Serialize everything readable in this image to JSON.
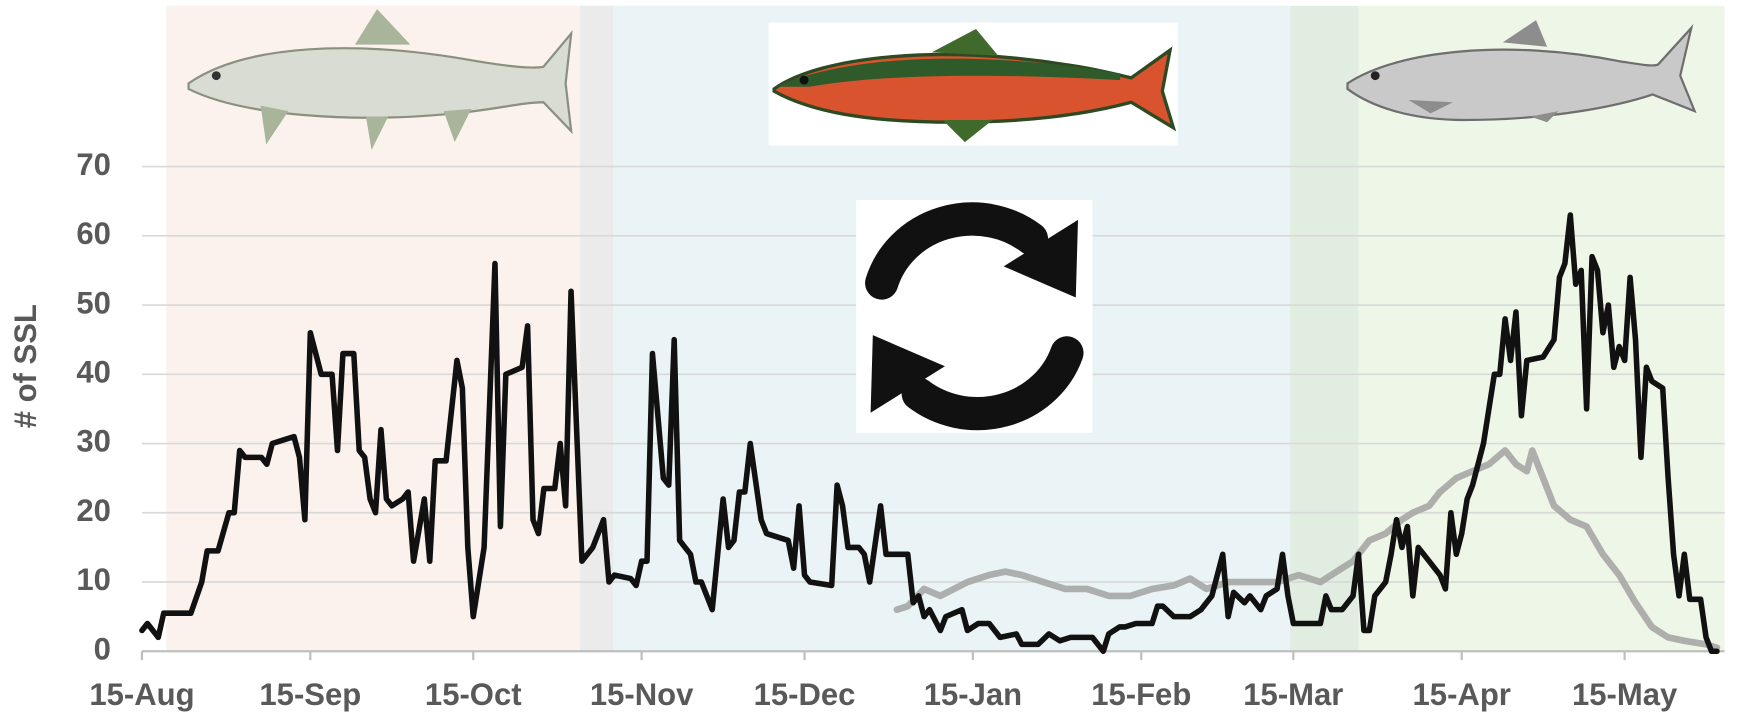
{
  "chart_data": {
    "type": "line",
    "y_label": "# of SSL",
    "grid": true,
    "xlim": [
      "15-Aug",
      "1-Jun"
    ],
    "xticks": [
      "15-Aug",
      "15-Sep",
      "15-Oct",
      "15-Nov",
      "15-Dec",
      "15-Jan",
      "15-Feb",
      "15-Mar",
      "15-Apr",
      "15-May"
    ],
    "ylim": [
      0,
      70
    ],
    "yticks": [
      0,
      10,
      20,
      30,
      40,
      50,
      60,
      70
    ],
    "series": [
      {
        "color": "#111111",
        "x": [
          "15-Aug",
          "16-Aug",
          "18-Aug",
          "19-Aug",
          "24-Aug",
          "26-Aug",
          "27-Aug",
          "29-Aug",
          "31-Aug",
          "1-Sep",
          "2-Sep",
          "3-Sep",
          "6-Sep",
          "7-Sep",
          "8-Sep",
          "10-Sep",
          "12-Sep",
          "13-Sep",
          "14-Sep",
          "15-Sep",
          "17-Sep",
          "19-Sep",
          "20-Sep",
          "21-Sep",
          "23-Sep",
          "24-Sep",
          "25-Sep",
          "26-Sep",
          "27-Sep",
          "28-Sep",
          "29-Sep",
          "30-Sep",
          "2-Oct",
          "3-Oct",
          "4-Oct",
          "6-Oct",
          "7-Oct",
          "8-Oct",
          "10-Oct",
          "12-Oct",
          "13-Oct",
          "14-Oct",
          "15-Oct",
          "16-Oct",
          "17-Oct",
          "19-Oct",
          "20-Oct",
          "21-Oct",
          "24-Oct",
          "25-Oct",
          "26-Oct",
          "27-Oct",
          "28-Oct",
          "30-Oct",
          "31-Oct",
          "1-Nov",
          "2-Nov",
          "4-Nov",
          "5-Nov",
          "6-Nov",
          "8-Nov",
          "9-Nov",
          "10-Nov",
          "13-Nov",
          "14-Nov",
          "15-Nov",
          "16-Nov",
          "17-Nov",
          "19-Nov",
          "20-Nov",
          "21-Nov",
          "22-Nov",
          "23-Nov",
          "24-Nov",
          "25-Nov",
          "26-Nov",
          "28-Nov",
          "30-Nov",
          "1-Dec",
          "2-Dec",
          "3-Dec",
          "4-Dec",
          "5-Dec",
          "7-Dec",
          "8-Dec",
          "12-Dec",
          "13-Dec",
          "14-Dec",
          "15-Dec",
          "16-Dec",
          "20-Dec",
          "21-Dec",
          "22-Dec",
          "23-Dec",
          "25-Dec",
          "26-Dec",
          "27-Dec",
          "29-Dec",
          "30-Dec",
          "3-Jan",
          "4-Jan",
          "5-Jan",
          "6-Jan",
          "7-Jan",
          "9-Jan",
          "10-Jan",
          "13-Jan",
          "14-Jan",
          "16-Jan",
          "18-Jan",
          "20-Jan",
          "23-Jan",
          "24-Jan",
          "27-Jan",
          "29-Jan",
          "31-Jan",
          "2-Feb",
          "6-Feb",
          "8-Feb",
          "9-Feb",
          "11-Feb",
          "12-Feb",
          "14-Feb",
          "17-Feb",
          "18-Feb",
          "19-Feb",
          "21-Feb",
          "24-Feb",
          "26-Feb",
          "28-Feb",
          "2-Mar",
          "3-Mar",
          "4-Mar",
          "6-Mar",
          "7-Mar",
          "9-Mar",
          "10-Mar",
          "12-Mar",
          "13-Mar",
          "14-Mar",
          "15-Mar",
          "20-Mar",
          "21-Mar",
          "22-Mar",
          "24-Mar",
          "26-Mar",
          "27-Mar",
          "28-Mar",
          "29-Mar",
          "30-Mar",
          "1-Apr",
          "2-Apr",
          "3-Apr",
          "4-Apr",
          "5-Apr",
          "6-Apr",
          "7-Apr",
          "9-Apr",
          "11-Apr",
          "12-Apr",
          "13-Apr",
          "14-Apr",
          "15-Apr",
          "16-Apr",
          "17-Apr",
          "19-Apr",
          "20-Apr",
          "21-Apr",
          "22-Apr",
          "23-Apr",
          "24-Apr",
          "25-Apr",
          "26-Apr",
          "27-Apr",
          "30-Apr",
          "2-May",
          "3-May",
          "4-May",
          "5-May",
          "6-May",
          "7-May",
          "8-May",
          "9-May",
          "10-May",
          "11-May",
          "12-May",
          "13-May",
          "14-May",
          "15-May",
          "16-May",
          "17-May",
          "18-May",
          "19-May",
          "20-May",
          "22-May",
          "23-May",
          "24-May",
          "25-May",
          "26-May",
          "27-May",
          "29-May",
          "30-May",
          "31-May",
          "1-Jun"
        ],
        "values": [
          3,
          4,
          2,
          5.5,
          5.5,
          10,
          14.5,
          14.5,
          20,
          20,
          29,
          28,
          28,
          27,
          30,
          30.5,
          31,
          28,
          19,
          46,
          40,
          40,
          29,
          43,
          43,
          29,
          28,
          22,
          20,
          32,
          22,
          21,
          22,
          23,
          13,
          22,
          13,
          27.5,
          27.5,
          42,
          38,
          15,
          5,
          10,
          15,
          56,
          18,
          40,
          41,
          47,
          19,
          17,
          23.5,
          23.5,
          30,
          21,
          52,
          13,
          14,
          15,
          19,
          10,
          11,
          10.5,
          9.5,
          13,
          13,
          43,
          25,
          24,
          45,
          16,
          15,
          14,
          10,
          10,
          6,
          22,
          15,
          16,
          23,
          23,
          30,
          19,
          17,
          16,
          12,
          21,
          11,
          10,
          9.5,
          24,
          21,
          15,
          15,
          14,
          10,
          21,
          14,
          14,
          7,
          8,
          5,
          6,
          3,
          5,
          6,
          3,
          4,
          4,
          2,
          2.5,
          1,
          1,
          2.5,
          1.5,
          2,
          2,
          0,
          2.5,
          3.5,
          3.5,
          4,
          4,
          6.5,
          6.5,
          5,
          5,
          6,
          8,
          14,
          5,
          8.5,
          7,
          8,
          6,
          8,
          9,
          14,
          8,
          4,
          4,
          8,
          6,
          6,
          8,
          14,
          3,
          3,
          8,
          10,
          14,
          19,
          15,
          18,
          8,
          15,
          13,
          11,
          9,
          20,
          14,
          17,
          22,
          24,
          30,
          35,
          40,
          40,
          48,
          42,
          49,
          34,
          42,
          42.5,
          45,
          54,
          56,
          63,
          53,
          55,
          35,
          57,
          55,
          46,
          50,
          41,
          44,
          42,
          54,
          45,
          28,
          41,
          39,
          38,
          25,
          14,
          8,
          14,
          7.5,
          7.5,
          2,
          0,
          0
        ]
      },
      {
        "color": "#a6a6a6",
        "x": [
          "1-Jan",
          "3-Jan",
          "6-Jan",
          "9-Jan",
          "14-Jan",
          "18-Jan",
          "21-Jan",
          "24-Jan",
          "28-Jan",
          "1-Feb",
          "5-Feb",
          "9-Feb",
          "13-Feb",
          "17-Feb",
          "21-Feb",
          "24-Feb",
          "27-Feb",
          "3-Mar",
          "8-Mar",
          "12-Mar",
          "16-Mar",
          "20-Mar",
          "23-Mar",
          "26-Mar",
          "29-Mar",
          "1-Apr",
          "4-Apr",
          "6-Apr",
          "9-Apr",
          "11-Apr",
          "14-Apr",
          "17-Apr",
          "20-Apr",
          "23-Apr",
          "25-Apr",
          "27-Apr",
          "28-Apr",
          "30-Apr",
          "2-May",
          "5-May",
          "8-May",
          "11-May",
          "14-May",
          "17-May",
          "20-May",
          "23-May",
          "26-May",
          "30-May",
          "1-Jun"
        ],
        "values": [
          6,
          6.5,
          9,
          8,
          10,
          11,
          11.5,
          11,
          10,
          9,
          9,
          8,
          8,
          9,
          9.5,
          10.5,
          9,
          10,
          10,
          10,
          11,
          10,
          11.5,
          13,
          16,
          17,
          19,
          20,
          21,
          23,
          25,
          26,
          27,
          29,
          27,
          26,
          29,
          25,
          21,
          19,
          18,
          14,
          11,
          7,
          3.5,
          2,
          1.5,
          1,
          0.5
        ]
      }
    ]
  }
}
